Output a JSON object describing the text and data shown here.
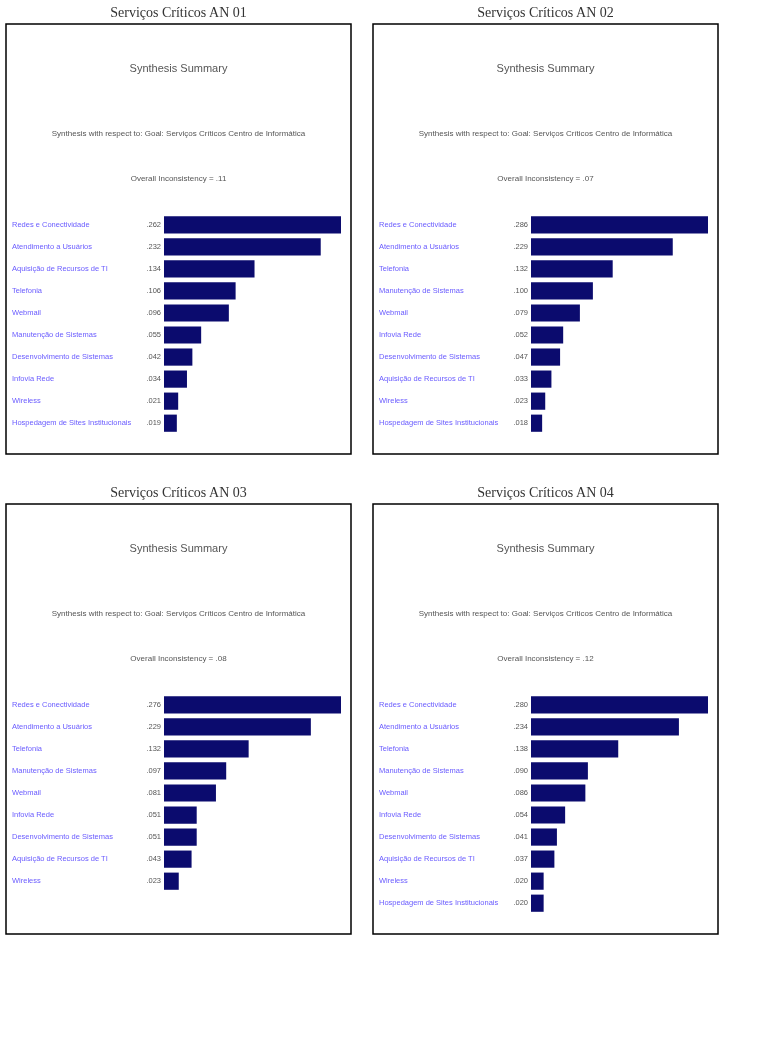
{
  "chart_data": [
    {
      "type": "bar",
      "orientation": "horizontal",
      "color": "#0b0b6e",
      "title": "Serviços Críticos AN 01",
      "subtitle": "Synthesis Summary",
      "annotations": [
        "Synthesis with respect to: Goal: Serviços Críticos Centro de Informática",
        "Overall Inconsistency = .11"
      ],
      "categories": [
        "Redes e Conectividade",
        "Atendimento a Usuários",
        "Aquisição de Recursos de TI",
        "Telefonia",
        "Webmail",
        "Manutenção de Sistemas",
        "Desenvolvimento de Sistemas",
        "Infovia Rede",
        "Wireless",
        "Hospedagem de Sites Institucionais"
      ],
      "values": [
        0.262,
        0.232,
        0.134,
        0.106,
        0.096,
        0.055,
        0.042,
        0.034,
        0.021,
        0.019
      ],
      "value_labels": [
        ".262",
        ".232",
        ".134",
        ".106",
        ".096",
        ".055",
        ".042",
        ".034",
        ".021",
        ".019"
      ]
    },
    {
      "type": "bar",
      "orientation": "horizontal",
      "color": "#0b0b6e",
      "title": "Serviços Críticos AN 02",
      "subtitle": "Synthesis Summary",
      "annotations": [
        "Synthesis with respect to: Goal: Serviços Críticos Centro de Informática",
        "Overall Inconsistency = .07"
      ],
      "categories": [
        "Redes e Conectividade",
        "Atendimento a Usuários",
        "Telefonia",
        "Manutenção de Sistemas",
        "Webmail",
        "Infovia Rede",
        "Desenvolvimento de Sistemas",
        "Aquisição de Recursos de TI",
        "Wireless",
        "Hospedagem de Sites Institucionais"
      ],
      "values": [
        0.286,
        0.229,
        0.132,
        0.1,
        0.079,
        0.052,
        0.047,
        0.033,
        0.023,
        0.018
      ],
      "value_labels": [
        ".286",
        ".229",
        ".132",
        ".100",
        ".079",
        ".052",
        ".047",
        ".033",
        ".023",
        ".018"
      ]
    },
    {
      "type": "bar",
      "orientation": "horizontal",
      "color": "#0b0b6e",
      "title": "Serviços Críticos AN 03",
      "subtitle": "Synthesis Summary",
      "annotations": [
        "Synthesis with respect to: Goal: Serviços Críticos Centro de Informática",
        "Overall Inconsistency = .08"
      ],
      "categories": [
        "Redes e Conectividade",
        "Atendimento a Usuários",
        "Telefonia",
        "Manutenção de Sistemas",
        "Webmail",
        "Infovia Rede",
        "Desenvolvimento de Sistemas",
        "Aquisição de Recursos de TI",
        "Wireless"
      ],
      "values": [
        0.276,
        0.229,
        0.132,
        0.097,
        0.081,
        0.051,
        0.051,
        0.043,
        0.023
      ],
      "value_labels": [
        ".276",
        ".229",
        ".132",
        ".097",
        ".081",
        ".051",
        ".051",
        ".043",
        ".023"
      ]
    },
    {
      "type": "bar",
      "orientation": "horizontal",
      "color": "#0b0b6e",
      "title": "Serviços Críticos AN 04",
      "subtitle": "Synthesis Summary",
      "annotations": [
        "Synthesis with respect to: Goal: Serviços Críticos Centro de Informática",
        "Overall Inconsistency = .12"
      ],
      "categories": [
        "Redes e Conectividade",
        "Atendimento a Usuários",
        "Telefonia",
        "Manutenção de Sistemas",
        "Webmail",
        "Infovia Rede",
        "Desenvolvimento de Sistemas",
        "Aquisição de Recursos de TI",
        "Wireless",
        "Hospedagem de Sites Institucionais"
      ],
      "values": [
        0.28,
        0.234,
        0.138,
        0.09,
        0.086,
        0.054,
        0.041,
        0.037,
        0.02,
        0.02
      ],
      "value_labels": [
        ".280",
        ".234",
        ".138",
        ".090",
        ".086",
        ".054",
        ".041",
        ".037",
        ".020",
        ".020"
      ]
    }
  ]
}
